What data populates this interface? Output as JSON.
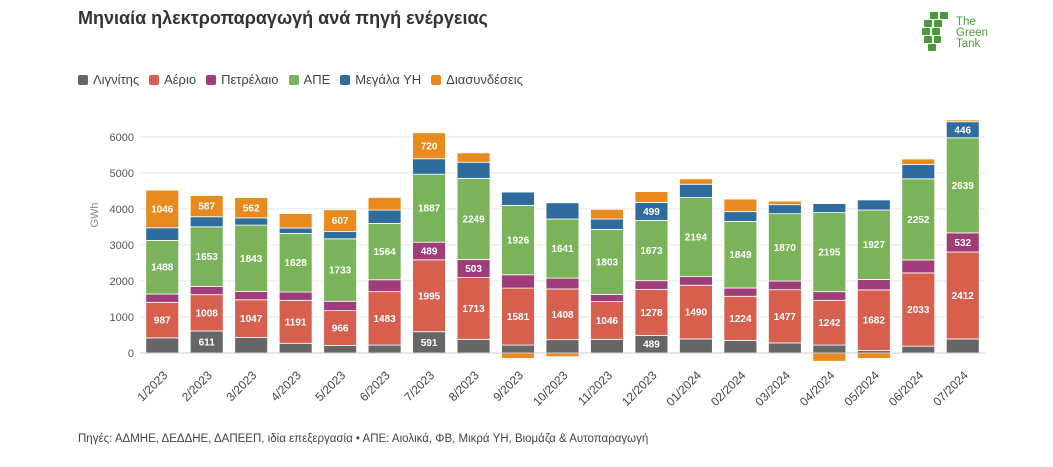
{
  "title": "Μηνιαία ηλεκτροπαραγωγή ανά πηγή ενέργειας",
  "logo": {
    "line1": "The",
    "line2": "Green",
    "line3": "Tank",
    "color": "#4a9a3a"
  },
  "footnote": "Πηγές: ΑΔΜΗΕ, ΔΕΔΔΗΕ, ΔΑΠΕΕΠ, ιδία επεξεργασία • ΑΠΕ: Αιολικά, ΦΒ, Μικρά ΥΗ, Βιομάζα & Αυτοπαραγωγή",
  "chart_data": {
    "type": "bar",
    "stacked": true,
    "categories": [
      "1/2023",
      "2/2023",
      "3/2023",
      "4/2023",
      "5/2023",
      "6/2023",
      "7/2023",
      "8/2023",
      "9/2023",
      "10/2023",
      "11/2023",
      "12/2023",
      "01/2024",
      "02/2024",
      "03/2024",
      "04/2024",
      "05/2024",
      "06/2024",
      "07/2024"
    ],
    "ylabel": "GWh",
    "ylim": [
      -250,
      6800
    ],
    "yticks": [
      0,
      1000,
      2000,
      3000,
      4000,
      5000,
      6000
    ],
    "legend_position": "top-left",
    "grid": true,
    "series": [
      {
        "name": "Λιγνίτης",
        "color": "#666666",
        "values": [
          420,
          611,
          430,
          270,
          210,
          220,
          591,
          380,
          220,
          370,
          380,
          489,
          390,
          350,
          280,
          220,
          70,
          190,
          390
        ],
        "labels": [
          null,
          "611",
          null,
          null,
          null,
          null,
          "591",
          null,
          null,
          null,
          null,
          "489",
          null,
          null,
          null,
          null,
          null,
          null,
          null
        ]
      },
      {
        "name": "Αέριο",
        "color": "#d65f4e",
        "values": [
          987,
          1008,
          1047,
          1191,
          966,
          1483,
          1995,
          1713,
          1581,
          1408,
          1046,
          1278,
          1490,
          1224,
          1477,
          1242,
          1682,
          2033,
          2412
        ],
        "labels": [
          "987",
          "1008",
          "1047",
          "1191",
          "966",
          "1483",
          "1995",
          "1713",
          "1581",
          "1408",
          "1046",
          "1278",
          "1490",
          "1224",
          "1477",
          "1242",
          "1682",
          "2033",
          "2412"
        ]
      },
      {
        "name": "Πετρέλαιο",
        "color": "#a03c7a",
        "values": [
          230,
          230,
          230,
          230,
          260,
          330,
          489,
          503,
          370,
          300,
          200,
          240,
          240,
          230,
          240,
          240,
          290,
          360,
          532
        ],
        "labels": [
          null,
          null,
          null,
          null,
          null,
          null,
          "489",
          "503",
          null,
          null,
          null,
          null,
          null,
          null,
          null,
          null,
          null,
          null,
          "532"
        ]
      },
      {
        "name": "ΑΠΕ",
        "color": "#7bb35a",
        "values": [
          1488,
          1653,
          1843,
          1628,
          1733,
          1564,
          1887,
          2249,
          1926,
          1641,
          1803,
          1673,
          2194,
          1849,
          1870,
          2195,
          1927,
          2252,
          2639
        ],
        "labels": [
          "1488",
          "1653",
          "1843",
          "1628",
          "1733",
          "1564",
          "1887",
          "2249",
          "1926",
          "1641",
          "1803",
          "1673",
          "2194",
          "1849",
          "1870",
          "2195",
          "1927",
          "2252",
          "2639"
        ]
      },
      {
        "name": "Μεγάλα ΥΗ",
        "color": "#2f6c9e",
        "values": [
          350,
          280,
          200,
          150,
          200,
          370,
          430,
          450,
          370,
          450,
          290,
          499,
          370,
          270,
          250,
          250,
          280,
          400,
          446
        ],
        "labels": [
          null,
          null,
          null,
          null,
          null,
          null,
          null,
          null,
          null,
          null,
          null,
          "499",
          null,
          null,
          null,
          null,
          null,
          null,
          "446"
        ]
      },
      {
        "name": "Διασυνδέσεις",
        "color": "#e88a1e",
        "values": [
          1046,
          587,
          562,
          400,
          607,
          350,
          720,
          260,
          -150,
          -100,
          270,
          300,
          150,
          350,
          100,
          -230,
          -150,
          150,
          50
        ],
        "labels": [
          "1046",
          "587",
          "562",
          null,
          "607",
          null,
          "720",
          null,
          null,
          null,
          null,
          null,
          null,
          null,
          null,
          null,
          null,
          null,
          null
        ]
      }
    ]
  }
}
